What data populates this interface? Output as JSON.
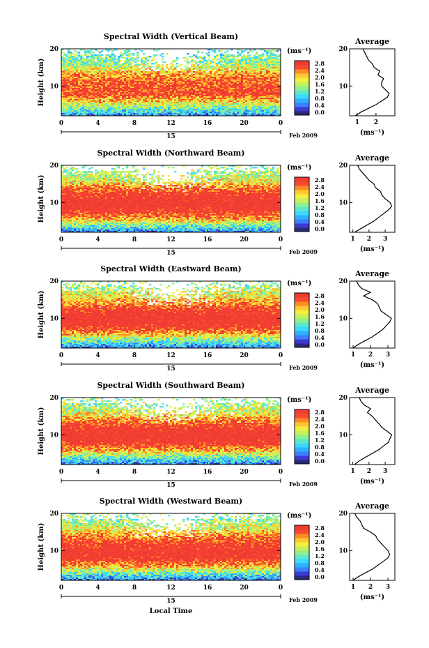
{
  "figure": {
    "xlabel": "Local Time",
    "date_label": "Feb 2009",
    "day_label": "15",
    "ylabel": "Height (km)",
    "colorbar_unit": "(ms⁻¹)",
    "colorbar_ticks": [
      "0.0",
      "0.4",
      "0.8",
      "1.2",
      "1.6",
      "2.0",
      "2.4",
      "2.8"
    ],
    "x_ticks": [
      "0",
      "4",
      "8",
      "12",
      "16",
      "20",
      "0"
    ],
    "y_ticks": [
      "20",
      "10"
    ],
    "avg_title": "Average",
    "avg_xlabel": "(ms⁻¹)",
    "colormap": [
      "#2a2a7a",
      "#3b3bd0",
      "#3f7fff",
      "#2fb0ff",
      "#3fd8ff",
      "#5fe8c8",
      "#8ff08f",
      "#c8f05a",
      "#f0f040",
      "#ffc830",
      "#ff8c28",
      "#f84a30",
      "#f03c32"
    ]
  },
  "chart_data": [
    {
      "type": "heatmap",
      "title": "Spectral Width (Vertical Beam)",
      "x": [
        0,
        4,
        8,
        12,
        16,
        20,
        24
      ],
      "xlim": [
        0,
        24
      ],
      "ylim": [
        2,
        20
      ],
      "clim": [
        0.0,
        2.8
      ],
      "z_profile_km": [
        2,
        4,
        6,
        8,
        10,
        12,
        14,
        16,
        18,
        20
      ],
      "z_width_ms": [
        0.6,
        1.3,
        2.1,
        2.8,
        2.7,
        2.6,
        2.2,
        1.6,
        1.4,
        1.2
      ],
      "average": {
        "title": "Average",
        "xticks": [
          "1",
          "2"
        ],
        "xlim": [
          0.6,
          3.0
        ],
        "height_km": [
          2,
          3,
          4,
          5,
          6,
          7,
          8,
          9,
          10,
          11,
          12,
          13,
          14,
          15,
          16,
          17,
          18,
          19,
          20
        ],
        "width_ms": [
          0.9,
          1.2,
          1.6,
          2.0,
          2.3,
          2.6,
          2.7,
          2.5,
          2.3,
          2.3,
          2.4,
          2.1,
          2.2,
          1.9,
          1.8,
          1.6,
          1.5,
          1.4,
          1.3
        ]
      }
    },
    {
      "type": "heatmap",
      "title": "Spectral Width (Northward Beam)",
      "x": [
        0,
        4,
        8,
        12,
        16,
        20,
        24
      ],
      "xlim": [
        0,
        24
      ],
      "ylim": [
        2,
        20
      ],
      "clim": [
        0.0,
        2.8
      ],
      "z_profile_km": [
        2,
        4,
        6,
        8,
        10,
        12,
        14,
        16,
        18,
        20
      ],
      "z_width_ms": [
        0.5,
        1.4,
        2.4,
        3.0,
        3.2,
        3.0,
        2.6,
        1.9,
        1.6,
        1.5
      ],
      "average": {
        "title": "Average",
        "xticks": [
          "1",
          "2",
          "3"
        ],
        "xlim": [
          0.8,
          3.6
        ],
        "height_km": [
          2,
          3,
          4,
          5,
          6,
          7,
          8,
          9,
          10,
          11,
          12,
          13,
          14,
          15,
          16,
          17,
          18,
          19,
          20
        ],
        "width_ms": [
          1.1,
          1.5,
          1.9,
          2.3,
          2.6,
          2.9,
          3.2,
          3.4,
          3.3,
          3.0,
          2.8,
          2.7,
          2.4,
          2.3,
          2.0,
          1.8,
          1.6,
          1.4,
          1.3
        ]
      }
    },
    {
      "type": "heatmap",
      "title": "Spectral Width (Eastward Beam)",
      "x": [
        0,
        4,
        8,
        12,
        16,
        20,
        24
      ],
      "xlim": [
        0,
        24
      ],
      "ylim": [
        2,
        20
      ],
      "clim": [
        0.0,
        2.8
      ],
      "z_profile_km": [
        2,
        4,
        6,
        8,
        10,
        12,
        14,
        16,
        18,
        20
      ],
      "z_width_ms": [
        0.5,
        1.3,
        2.3,
        3.0,
        3.2,
        3.0,
        2.5,
        2.0,
        1.7,
        1.5
      ],
      "average": {
        "title": "Average",
        "xticks": [
          "1",
          "2",
          "3"
        ],
        "xlim": [
          0.8,
          3.4
        ],
        "height_km": [
          2,
          3,
          4,
          5,
          6,
          7,
          8,
          9,
          10,
          11,
          12,
          13,
          14,
          15,
          16,
          17,
          18,
          19,
          20
        ],
        "width_ms": [
          1.0,
          1.3,
          1.7,
          2.1,
          2.4,
          2.7,
          2.9,
          3.1,
          3.2,
          2.9,
          2.6,
          2.5,
          2.4,
          2.1,
          1.6,
          2.0,
          1.5,
          1.3,
          1.2
        ]
      }
    },
    {
      "type": "heatmap",
      "title": "Spectral Width (Southward Beam)",
      "x": [
        0,
        4,
        8,
        12,
        16,
        20,
        24
      ],
      "xlim": [
        0,
        24
      ],
      "ylim": [
        2,
        20
      ],
      "clim": [
        0.0,
        2.8
      ],
      "z_profile_km": [
        2,
        4,
        6,
        8,
        10,
        12,
        14,
        16,
        18,
        20
      ],
      "z_width_ms": [
        0.5,
        1.3,
        2.3,
        3.0,
        3.2,
        3.0,
        2.5,
        1.9,
        1.6,
        1.5
      ],
      "average": {
        "title": "Average",
        "xticks": [
          "1",
          "2",
          "3"
        ],
        "xlim": [
          0.8,
          3.6
        ],
        "height_km": [
          2,
          3,
          4,
          5,
          6,
          7,
          8,
          9,
          10,
          11,
          12,
          13,
          14,
          15,
          16,
          17,
          18,
          19,
          20
        ],
        "width_ms": [
          1.1,
          1.4,
          1.8,
          2.2,
          2.6,
          2.9,
          3.2,
          3.3,
          3.4,
          3.1,
          2.8,
          2.6,
          2.4,
          2.2,
          1.9,
          2.1,
          1.7,
          1.5,
          1.4
        ]
      }
    },
    {
      "type": "heatmap",
      "title": "Spectral Width (Westward Beam)",
      "x": [
        0,
        4,
        8,
        12,
        16,
        20,
        24
      ],
      "xlim": [
        0,
        24
      ],
      "ylim": [
        2,
        20
      ],
      "clim": [
        0.0,
        2.8
      ],
      "z_profile_km": [
        2,
        4,
        6,
        8,
        10,
        12,
        14,
        16,
        18,
        20
      ],
      "z_width_ms": [
        0.5,
        1.3,
        2.3,
        3.0,
        3.1,
        2.9,
        2.5,
        1.9,
        1.6,
        1.5
      ],
      "average": {
        "title": "Average",
        "xticks": [
          "1",
          "2",
          "3"
        ],
        "xlim": [
          0.8,
          3.4
        ],
        "height_km": [
          2,
          3,
          4,
          5,
          6,
          7,
          8,
          9,
          10,
          11,
          12,
          13,
          14,
          15,
          16,
          17,
          18,
          19,
          20
        ],
        "width_ms": [
          1.0,
          1.3,
          1.7,
          2.1,
          2.4,
          2.7,
          3.0,
          3.1,
          3.0,
          2.8,
          2.6,
          2.4,
          2.3,
          2.0,
          1.6,
          1.5,
          1.4,
          1.2,
          1.1
        ]
      }
    }
  ]
}
